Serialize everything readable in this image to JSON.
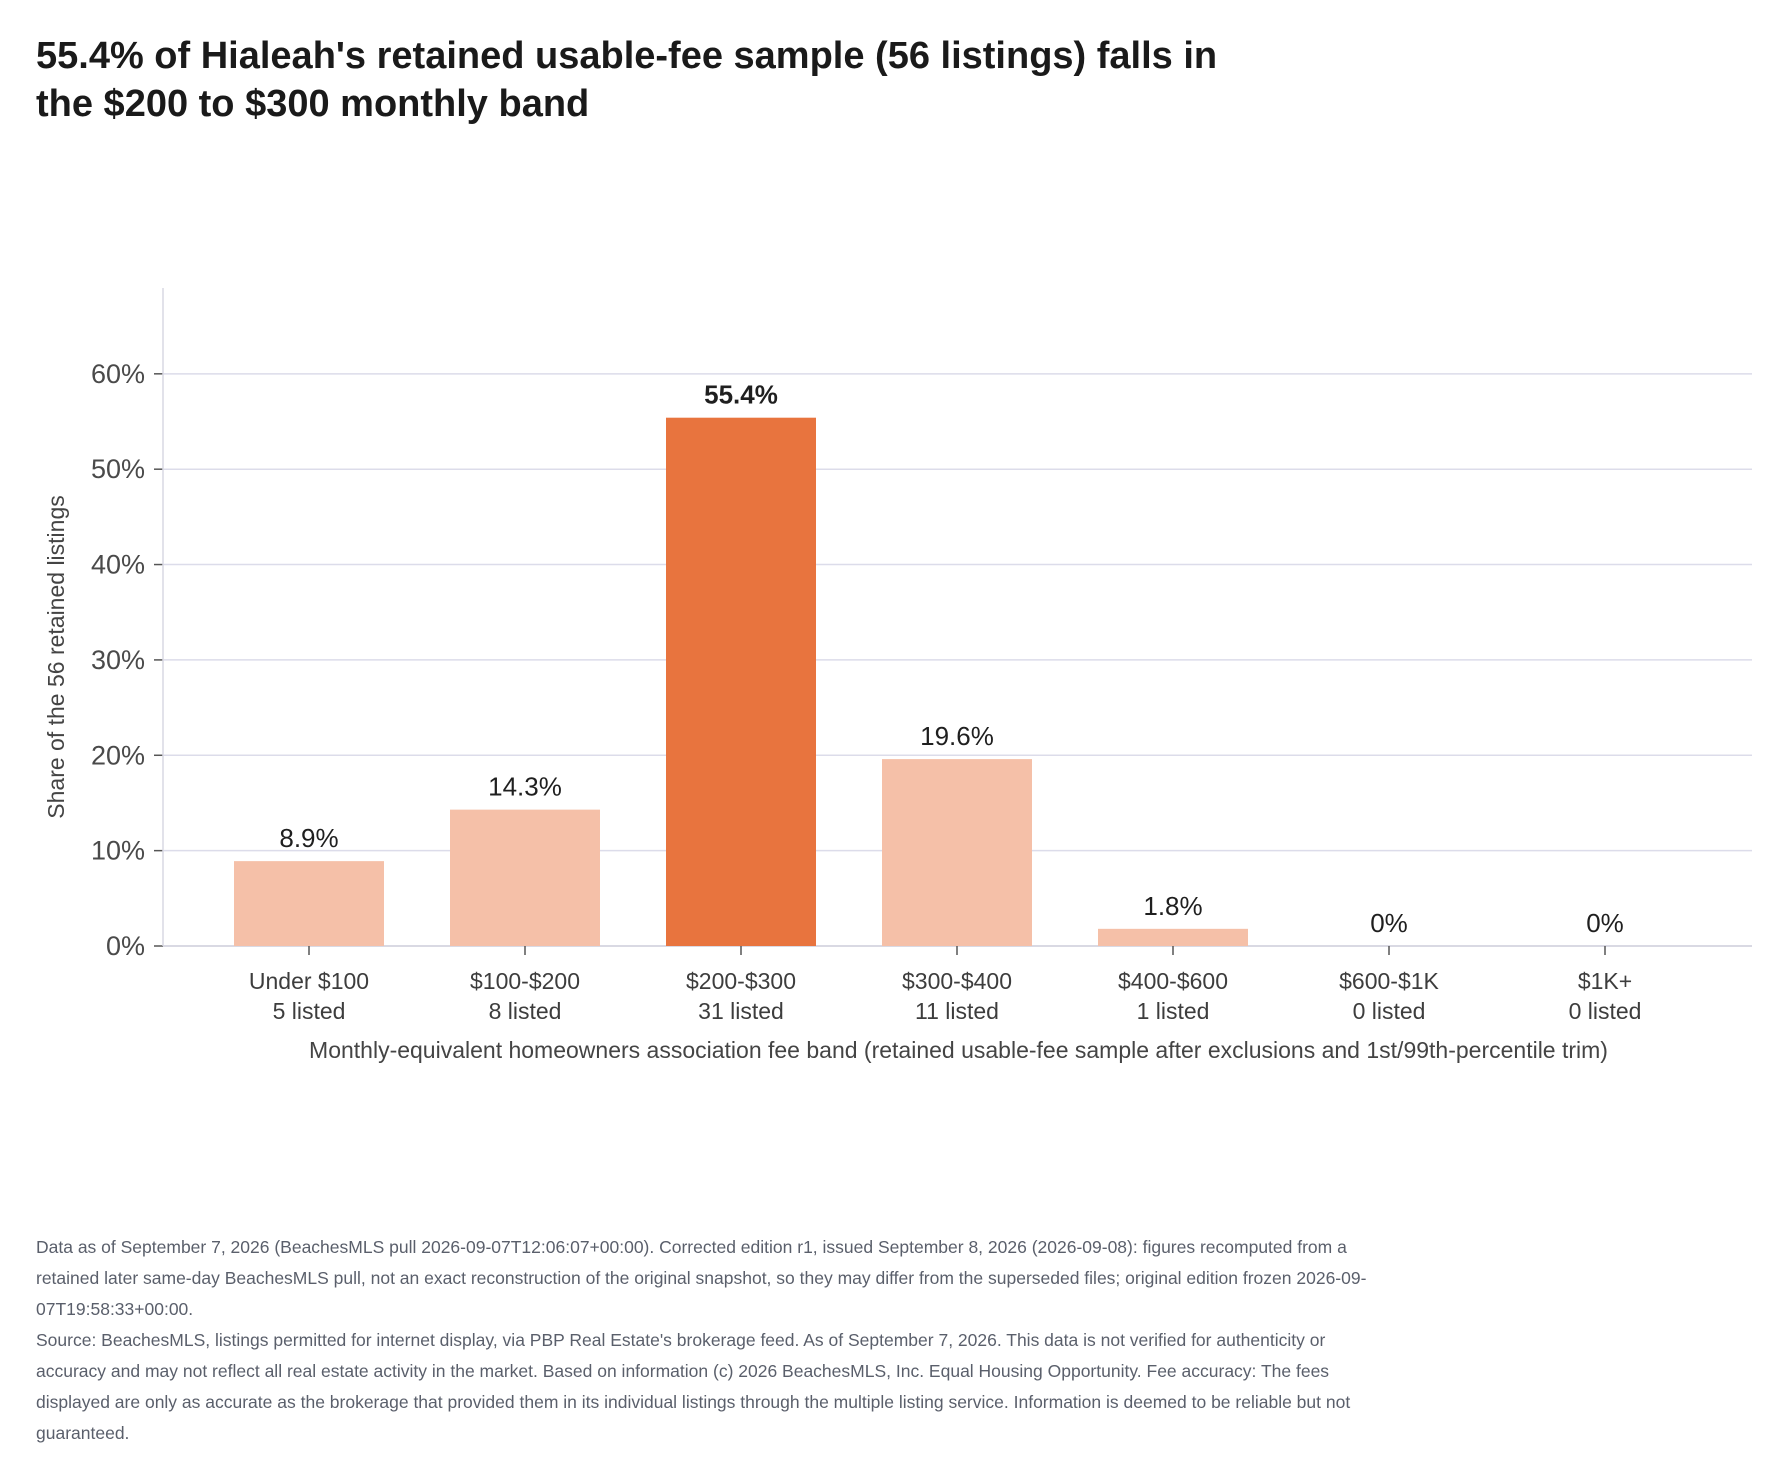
{
  "title": "55.4% of Hialeah's retained usable-fee sample (56 listings) falls in the $200 to $300 monthly band",
  "chart_data": {
    "type": "bar",
    "title": "55.4% of Hialeah's retained usable-fee sample (56 listings) falls in the $200 to $300 monthly band",
    "xlabel": "Monthly-equivalent homeowners association fee band (retained usable-fee sample after exclusions and 1st/99th-percentile trim)",
    "ylabel": "Share of the 56 retained listings",
    "ylim": [
      0,
      69
    ],
    "yticks": [
      0,
      10,
      20,
      30,
      40,
      50,
      60
    ],
    "ytick_labels": [
      "0%",
      "10%",
      "20%",
      "30%",
      "40%",
      "50%",
      "60%"
    ],
    "grid": true,
    "categories": [
      "Under $100",
      "$100-$200",
      "$200-$300",
      "$300-$400",
      "$400-$600",
      "$600-$1K",
      "$1K+"
    ],
    "counts": [
      "5 listed",
      "8 listed",
      "31 listed",
      "11 listed",
      "1 listed",
      "0 listed",
      "0 listed"
    ],
    "values": [
      8.9,
      14.3,
      55.4,
      19.6,
      1.8,
      0,
      0
    ],
    "value_labels": [
      "8.9%",
      "14.3%",
      "55.4%",
      "19.6%",
      "1.8%",
      "0%",
      "0%"
    ],
    "highlight_index": 2,
    "colors": {
      "bar": "#f5c0a8",
      "highlight": "#e8743e",
      "grid": "#dcdcea",
      "axis": "#d9d9e3"
    }
  },
  "notes": {
    "data_as_of": "Data as of September 7, 2026 (BeachesMLS pull 2026-09-07T12:06:07+00:00). Corrected edition r1, issued September 8, 2026 (2026-09-08): figures recomputed from a retained later same-day BeachesMLS pull, not an exact reconstruction of the original snapshot, so they may differ from the superseded files; original edition frozen 2026-09-07T19:58:33+00:00.",
    "source": "Source: BeachesMLS, listings permitted for internet display, via PBP Real Estate's brokerage feed. As of September 7, 2026. This data is not verified for authenticity or accuracy and may not reflect all real estate activity in the market. Based on information (c) 2026 BeachesMLS, Inc. Equal Housing Opportunity. Fee accuracy: The fees displayed are only as accurate as the brokerage that provided them in its individual listings through the multiple listing service. Information is deemed to be reliable but not guaranteed."
  }
}
